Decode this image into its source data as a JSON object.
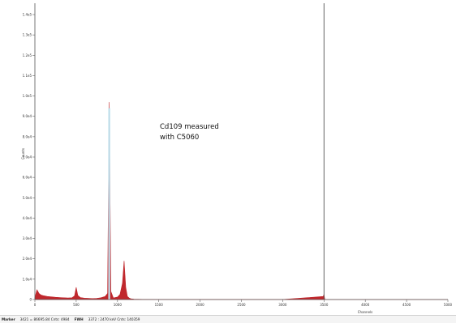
{
  "chart_data": {
    "type": "line",
    "title": "",
    "xlabel": "Channels",
    "ylabel": "Counts",
    "xlim": [
      0,
      5000
    ],
    "ylim": [
      0,
      140000
    ],
    "x_ticks": [
      0,
      500,
      1000,
      1500,
      2000,
      2500,
      3000,
      3500,
      4000,
      4500,
      5000
    ],
    "x_tick_labels": [
      "0",
      "500",
      "1000",
      "1500",
      "2000",
      "2500",
      "3000",
      "3500",
      "4000",
      "4500",
      "5000"
    ],
    "y_ticks": [
      0,
      10000,
      20000,
      30000,
      40000,
      50000,
      60000,
      70000,
      80000,
      90000,
      100000,
      110000,
      120000,
      130000,
      140000
    ],
    "y_tick_labels": [
      "0",
      "1.0e4",
      "2.0e4",
      "3.0e4",
      "4.0e4",
      "5.0e4",
      "6.0e4",
      "7.0e4",
      "8.0e4",
      "9.0e4",
      "1.0e5",
      "1.1e5",
      "1.2e5",
      "1.3e5",
      "1.4e5"
    ],
    "grid": false,
    "marker_channel": 3500,
    "spectrum_color": "#c0282d",
    "roi_color": "#bfe3ef",
    "marker_color": "#555555",
    "series": [
      {
        "x": [
          0,
          25,
          50,
          75,
          100,
          150,
          200,
          250,
          300,
          350,
          400,
          450,
          480,
          500,
          520,
          550,
          600,
          650,
          700,
          750,
          800,
          850,
          880,
          900,
          920,
          950,
          1000,
          1030,
          1060,
          1080,
          1100,
          1120,
          1140,
          1160,
          1200,
          1300,
          1500,
          2000,
          3000,
          3490,
          3500,
          3510,
          4000,
          5000
        ],
        "y": [
          1000,
          4800,
          3000,
          2200,
          1900,
          1500,
          1300,
          1100,
          1000,
          900,
          800,
          900,
          1800,
          6000,
          2000,
          1000,
          700,
          600,
          500,
          600,
          900,
          1500,
          3000,
          97000,
          4000,
          800,
          1200,
          2500,
          8000,
          19000,
          6000,
          1500,
          800,
          400,
          200,
          100,
          50,
          20,
          10,
          1500,
          2500,
          10,
          0,
          0
        ]
      }
    ],
    "annotations": [
      "Cd109 measured",
      "with C5060"
    ]
  },
  "status_bar": {
    "marker_label": "Marker",
    "marker_value": "3421 = 86695.84  Cnts: 4984",
    "fwhm_label": "FWH",
    "fwhm_value": "3372 : 2470 keV  Cnts: 140359"
  }
}
